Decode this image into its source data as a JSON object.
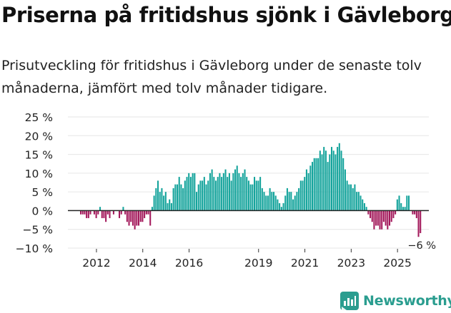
{
  "header": {
    "title": "Priserna på fritidshus sjönk i Gävleborg",
    "subtitle": "Prisutveckling för fritidshus i Gävleborg under de senaste tolv månaderna, jämfört med tolv månader tidigare."
  },
  "brand": {
    "name": "Newsworthy",
    "logo_icon": "newsworthy-logo-icon",
    "color": "#2a9d8f"
  },
  "colors": {
    "positive": "#13a39b",
    "negative": "#a3195b",
    "zero_line": "#222222",
    "grid": "#e6e6e6"
  },
  "chart_data": {
    "type": "bar",
    "title": "Priserna på fritidshus sjönk i Gävleborg",
    "xlabel": "",
    "ylabel": "",
    "ylim": [
      -10,
      25
    ],
    "y_ticks": [
      25,
      20,
      15,
      10,
      5,
      0,
      -5,
      -10
    ],
    "y_tick_labels": [
      "25 %",
      "20 %",
      "15 %",
      "10 %",
      "5 %",
      "0 %",
      "−5 %",
      "−10 %"
    ],
    "x_start": "2011-05",
    "x_ticks": [
      {
        "label": "2012",
        "date": "2012-01"
      },
      {
        "label": "2014",
        "date": "2014-01"
      },
      {
        "label": "2016",
        "date": "2016-01"
      },
      {
        "label": "2019",
        "date": "2019-01"
      },
      {
        "label": "2021",
        "date": "2021-01"
      },
      {
        "label": "2023",
        "date": "2023-01"
      },
      {
        "label": "2025",
        "date": "2025-01"
      }
    ],
    "annotation": "−6 %",
    "values": [
      -1,
      -1,
      -1,
      -2,
      -2,
      -1,
      0,
      -1,
      -2,
      -1,
      1,
      -2,
      -2,
      -3,
      -1,
      -2,
      0,
      -1,
      0,
      0,
      -2,
      -1,
      1,
      -1,
      -3,
      -4,
      -3,
      -4,
      -5,
      -4,
      -4,
      -3,
      -3,
      -2,
      -1,
      -1,
      -4,
      1,
      4,
      6,
      8,
      5,
      6,
      4,
      5,
      2,
      3,
      2,
      6,
      7,
      7,
      9,
      7,
      6,
      8,
      9,
      10,
      9,
      10,
      10,
      5,
      7,
      8,
      8,
      9,
      7,
      8,
      10,
      11,
      9,
      8,
      9,
      10,
      9,
      10,
      11,
      9,
      10,
      8,
      10,
      11,
      12,
      10,
      9,
      10,
      11,
      9,
      8,
      7,
      7,
      9,
      8,
      8,
      9,
      6,
      5,
      4,
      4,
      6,
      5,
      5,
      4,
      3,
      2,
      1,
      2,
      4,
      6,
      5,
      5,
      3,
      4,
      5,
      6,
      8,
      8,
      9,
      11,
      10,
      12,
      13,
      14,
      14,
      14,
      16,
      15,
      17,
      16,
      13,
      15,
      17,
      16,
      15,
      17,
      18,
      16,
      14,
      11,
      8,
      7,
      7,
      6,
      7,
      5,
      5,
      4,
      3,
      2,
      1,
      -1,
      -2,
      -3,
      -5,
      -4,
      -4,
      -5,
      -5,
      -3,
      -4,
      -5,
      -4,
      -3,
      -2,
      -1,
      3,
      4,
      2,
      1,
      1,
      4,
      4,
      0,
      -1,
      -1,
      -2,
      -7,
      -6
    ]
  }
}
